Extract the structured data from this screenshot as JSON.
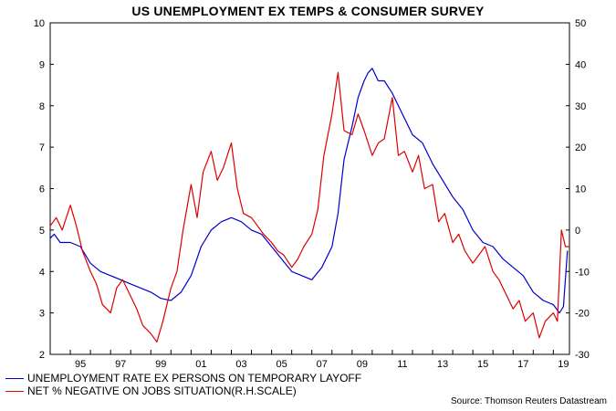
{
  "chart_data": {
    "type": "line",
    "title": "US UNEMPLOYMENT EX TEMPS & CONSUMER SURVEY",
    "source": "Source: Thomson Reuters Datastream",
    "x_ticks": [
      "95",
      "97",
      "99",
      "01",
      "03",
      "05",
      "07",
      "09",
      "11",
      "13",
      "15",
      "17",
      "19"
    ],
    "x_range": [
      1994.0,
      2019.8
    ],
    "y_left": {
      "range": [
        2,
        10
      ],
      "ticks": [
        "2",
        "3",
        "4",
        "5",
        "6",
        "7",
        "8",
        "9",
        "10"
      ]
    },
    "y_right": {
      "range": [
        -30,
        50
      ],
      "ticks": [
        "-30",
        "-20",
        "-10",
        "0",
        "10",
        "20",
        "30",
        "40",
        "50"
      ]
    },
    "grid": false,
    "legend_position": "bottom-left",
    "series": [
      {
        "name": "UNEMPLOYMENT RATE EX PERSONS ON TEMPORARY LAYOFF",
        "axis": "left",
        "color": "#0000cc",
        "x": [
          1994.0,
          1994.2,
          1994.5,
          1995.0,
          1995.5,
          1996.0,
          1996.5,
          1997.0,
          1997.5,
          1998.0,
          1998.5,
          1999.0,
          1999.5,
          2000.0,
          2000.5,
          2001.0,
          2001.5,
          2002.0,
          2002.5,
          2003.0,
          2003.5,
          2004.0,
          2004.5,
          2005.0,
          2005.5,
          2006.0,
          2006.5,
          2007.0,
          2007.5,
          2008.0,
          2008.3,
          2008.6,
          2009.0,
          2009.3,
          2009.6,
          2009.8,
          2010.0,
          2010.3,
          2010.6,
          2011.0,
          2011.5,
          2012.0,
          2012.5,
          2013.0,
          2013.5,
          2014.0,
          2014.5,
          2015.0,
          2015.5,
          2016.0,
          2016.5,
          2017.0,
          2017.5,
          2018.0,
          2018.5,
          2019.0,
          2019.3,
          2019.5,
          2019.7
        ],
        "values": [
          4.8,
          4.9,
          4.7,
          4.7,
          4.6,
          4.2,
          4.0,
          3.9,
          3.8,
          3.7,
          3.6,
          3.5,
          3.35,
          3.3,
          3.5,
          3.9,
          4.6,
          5.0,
          5.2,
          5.3,
          5.2,
          5.0,
          4.9,
          4.6,
          4.3,
          4.0,
          3.9,
          3.8,
          4.1,
          4.6,
          5.4,
          6.7,
          7.5,
          8.2,
          8.6,
          8.8,
          8.9,
          8.6,
          8.6,
          8.3,
          7.8,
          7.3,
          7.1,
          6.6,
          6.2,
          5.8,
          5.5,
          5.0,
          4.7,
          4.6,
          4.3,
          4.1,
          3.9,
          3.5,
          3.3,
          3.2,
          3.0,
          3.15,
          4.5
        ]
      },
      {
        "name": "NET % NEGATIVE ON JOBS SITUATION(R.H.SCALE)",
        "axis": "right",
        "color": "#dd0000",
        "x": [
          1994.0,
          1994.3,
          1994.6,
          1995.0,
          1995.3,
          1995.6,
          1996.0,
          1996.3,
          1996.6,
          1997.0,
          1997.3,
          1997.6,
          1998.0,
          1998.3,
          1998.6,
          1999.0,
          1999.3,
          1999.6,
          2000.0,
          2000.3,
          2000.6,
          2001.0,
          2001.3,
          2001.6,
          2002.0,
          2002.3,
          2002.6,
          2003.0,
          2003.3,
          2003.6,
          2004.0,
          2004.3,
          2004.6,
          2005.0,
          2005.3,
          2005.6,
          2006.0,
          2006.3,
          2006.6,
          2007.0,
          2007.3,
          2007.6,
          2008.0,
          2008.3,
          2008.6,
          2009.0,
          2009.3,
          2009.6,
          2010.0,
          2010.3,
          2010.6,
          2011.0,
          2011.3,
          2011.6,
          2012.0,
          2012.3,
          2012.6,
          2013.0,
          2013.3,
          2013.6,
          2014.0,
          2014.3,
          2014.6,
          2015.0,
          2015.3,
          2015.6,
          2016.0,
          2016.3,
          2016.6,
          2017.0,
          2017.3,
          2017.6,
          2018.0,
          2018.3,
          2018.6,
          2019.0,
          2019.2,
          2019.4,
          2019.6,
          2019.8
        ],
        "values": [
          1,
          3,
          0,
          6,
          1,
          -5,
          -10,
          -13,
          -18,
          -20,
          -14,
          -12,
          -16,
          -19,
          -23,
          -25,
          -27,
          -22,
          -14,
          -10,
          0,
          11,
          3,
          14,
          19,
          12,
          15,
          21,
          10,
          4,
          3,
          1,
          -1,
          -3,
          -5,
          -6,
          -9,
          -7,
          -4,
          -1,
          5,
          18,
          28,
          38,
          24,
          23,
          28,
          24,
          18,
          21,
          22,
          32,
          18,
          19,
          14,
          18,
          10,
          11,
          2,
          4,
          -3,
          -1,
          -5,
          -8,
          -6,
          -4,
          -10,
          -12,
          -15,
          -19,
          -17,
          -22,
          -20,
          -26,
          -22,
          -20,
          -22,
          0,
          -4,
          -4
        ]
      }
    ]
  }
}
